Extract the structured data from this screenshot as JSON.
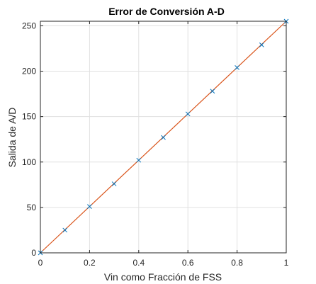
{
  "chart_data": {
    "type": "line",
    "title": "Error de Conversión A-D",
    "xlabel": "Vin como Fracción de FSS",
    "ylabel": "Salida de A/D",
    "xlim": [
      0,
      1
    ],
    "ylim": [
      0,
      255
    ],
    "xticks": [
      "0",
      "0.2",
      "0.4",
      "0.6",
      "0.8",
      "1"
    ],
    "yticks": [
      "0",
      "50",
      "100",
      "150",
      "200",
      "250"
    ],
    "grid": true,
    "legend": "none",
    "colors": {
      "line": "#d95319",
      "markers": "#0072bd",
      "grid": "#e0e0e0",
      "axes": "#262626"
    },
    "series": [
      {
        "style": "line",
        "x": [
          0,
          1
        ],
        "y": [
          0,
          255
        ]
      },
      {
        "style": "x-markers",
        "x": [
          0,
          0.1,
          0.2,
          0.3,
          0.4,
          0.5,
          0.6,
          0.7,
          0.8,
          0.9,
          1
        ],
        "y": [
          0,
          25,
          51,
          76,
          102,
          127,
          153,
          178,
          204,
          229,
          255
        ]
      }
    ]
  }
}
